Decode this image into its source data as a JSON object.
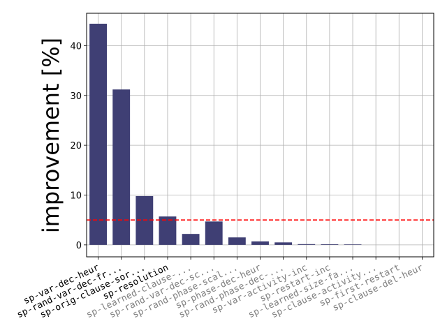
{
  "chart_data": {
    "type": "bar",
    "ylabel": "improvement [%]",
    "xlabel": "",
    "ylim": [
      -2.4,
      46.5
    ],
    "yticks": [
      0,
      10,
      20,
      30,
      40
    ],
    "grid": true,
    "bar_color": "#3f3f74",
    "threshold": {
      "value": 5,
      "color": "#ff0000",
      "style": "dashed"
    },
    "categories": [
      "sp-var-dec-heur",
      "sp-rand-var-dec-fr...",
      "sp-orig-clause-sor...",
      "sp-resolution",
      "sp-learned-clause-...",
      "sp-rand-var-dec-sc...",
      "sp-rand-phase-scal...",
      "sp-phase-dec-heur",
      "sp-rand-phase-dec-...",
      "sp-var-activity-inc",
      "sp-restart-inc",
      "sp-learned-size-fa...",
      "sp-clause-activity...",
      "sp-first-restart",
      "sp-clause-del-heur"
    ],
    "values": [
      44.4,
      31.2,
      9.8,
      5.7,
      2.2,
      4.7,
      1.5,
      0.7,
      0.5,
      0.15,
      0.12,
      0.1,
      0.0,
      0.0,
      0.0
    ],
    "label_colors": [
      "#000000",
      "#000000",
      "#000000",
      "#000000",
      "#808080",
      "#808080",
      "#808080",
      "#808080",
      "#808080",
      "#808080",
      "#808080",
      "#808080",
      "#808080",
      "#808080",
      "#808080"
    ]
  }
}
